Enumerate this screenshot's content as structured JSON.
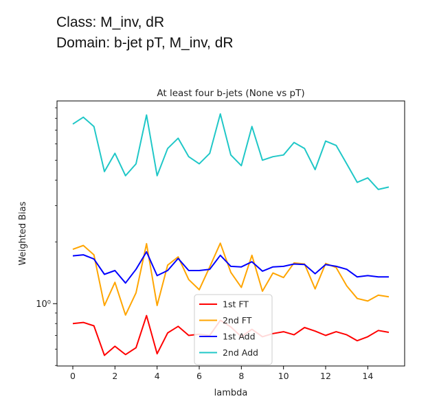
{
  "header": {
    "class_line": "Class: M_inv, dR",
    "domain_line": "Domain: b-jet pT, M_inv, dR"
  },
  "chart_data": {
    "type": "line",
    "title": "At least four b-jets (None vs pT)",
    "xlabel": "lambda",
    "ylabel": "Weighted Bias",
    "yscale": "log",
    "xlim": [
      -0.75,
      15.75
    ],
    "ylim": [
      0.497,
      9.72
    ],
    "x_ticks": [
      0,
      2,
      4,
      6,
      8,
      10,
      12,
      14
    ],
    "y_ticks": [
      {
        "value": 1,
        "label": "10⁰"
      }
    ],
    "legend_position": "lower center",
    "grid": false,
    "x": [
      0,
      0.5,
      1,
      1.5,
      2,
      2.5,
      3,
      3.5,
      4,
      4.5,
      5,
      5.5,
      6,
      6.5,
      7,
      7.5,
      8,
      8.5,
      9,
      9.5,
      10,
      10.5,
      11,
      11.5,
      12,
      12.5,
      13,
      13.5,
      14,
      14.5,
      15
    ],
    "series": [
      {
        "name": "1st FT",
        "color": "#ff0000",
        "values": [
          0.8,
          0.81,
          0.78,
          0.56,
          0.62,
          0.565,
          0.61,
          0.875,
          0.57,
          0.72,
          0.775,
          0.7,
          0.71,
          0.7,
          0.83,
          0.77,
          0.69,
          0.75,
          0.69,
          0.715,
          0.73,
          0.705,
          0.765,
          0.735,
          0.7,
          0.73,
          0.705,
          0.66,
          0.69,
          0.74,
          0.725
        ]
      },
      {
        "name": "2nd FT",
        "color": "#ffa500",
        "values": [
          1.84,
          1.92,
          1.73,
          0.98,
          1.27,
          0.88,
          1.13,
          1.96,
          0.98,
          1.54,
          1.69,
          1.31,
          1.17,
          1.51,
          1.97,
          1.42,
          1.2,
          1.72,
          1.15,
          1.41,
          1.34,
          1.58,
          1.56,
          1.18,
          1.57,
          1.5,
          1.22,
          1.06,
          1.03,
          1.1,
          1.08
        ]
      },
      {
        "name": "1st Add",
        "color": "#0000ff",
        "values": [
          1.71,
          1.73,
          1.65,
          1.39,
          1.45,
          1.26,
          1.47,
          1.79,
          1.37,
          1.45,
          1.66,
          1.45,
          1.45,
          1.47,
          1.72,
          1.52,
          1.51,
          1.6,
          1.44,
          1.51,
          1.52,
          1.56,
          1.55,
          1.4,
          1.55,
          1.52,
          1.47,
          1.35,
          1.37,
          1.35,
          1.35
        ]
      },
      {
        "name": "2nd Add",
        "color": "#1fc7c7",
        "values": [
          7.5,
          8.1,
          7.3,
          4.4,
          5.4,
          4.2,
          4.8,
          8.3,
          4.2,
          5.7,
          6.4,
          5.2,
          4.8,
          5.4,
          8.4,
          5.3,
          4.7,
          7.3,
          5.0,
          5.2,
          5.3,
          6.1,
          5.7,
          4.5,
          6.2,
          5.9,
          4.8,
          3.9,
          4.1,
          3.6,
          3.7
        ]
      }
    ]
  }
}
